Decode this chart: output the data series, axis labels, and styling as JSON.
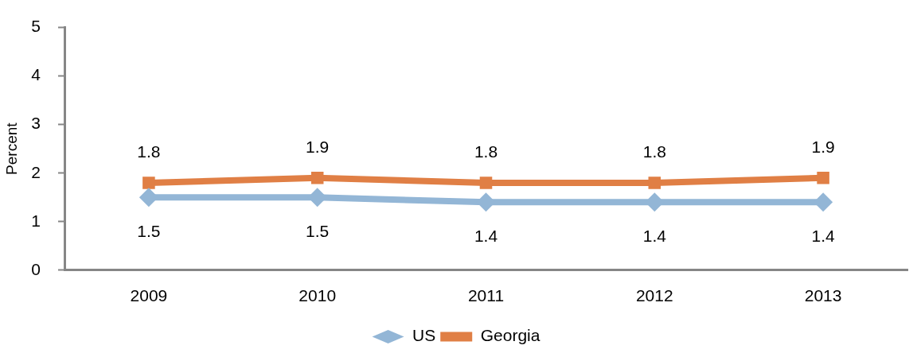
{
  "chart_data": {
    "type": "line",
    "ylabel": "Percent",
    "categories": [
      "2009",
      "2010",
      "2011",
      "2012",
      "2013"
    ],
    "series": [
      {
        "name": "US",
        "color": "#93b6d6",
        "marker": "diamond",
        "values": [
          1.5,
          1.5,
          1.4,
          1.4,
          1.4
        ]
      },
      {
        "name": "Georgia",
        "color": "#e07f45",
        "marker": "square",
        "values": [
          1.8,
          1.9,
          1.8,
          1.8,
          1.9
        ]
      }
    ],
    "ylim": [
      0,
      5
    ],
    "yticks": [
      0,
      1,
      2,
      3,
      4,
      5
    ],
    "grid": false,
    "legend": "bottom",
    "data_labels": true,
    "line_style": "solid"
  }
}
